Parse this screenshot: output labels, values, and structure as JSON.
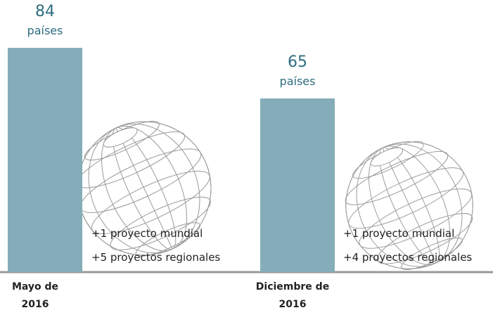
{
  "chart_data": {
    "type": "bar",
    "categories": [
      "Mayo de 2016",
      "Diciembre de 2016"
    ],
    "values": [
      84,
      65
    ],
    "value_unit": "países",
    "color": "#85adb9",
    "label_color": "#2e6e80",
    "notes": [
      [
        "+1 proyecto mundial",
        "+5 proyectos regionales"
      ],
      [
        "+1 proyecto mundial",
        "+4 proyectos regionales"
      ]
    ]
  }
}
